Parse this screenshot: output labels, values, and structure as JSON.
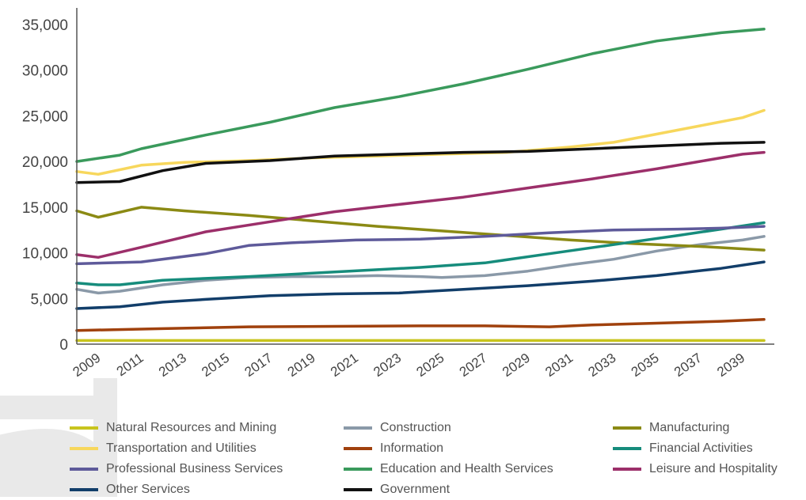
{
  "chart_data": {
    "type": "line",
    "x": [
      2008,
      2011,
      2014,
      2017,
      2020,
      2023,
      2026,
      2029,
      2032,
      2035,
      2038,
      2040
    ],
    "x_tick_labels": [
      "2009",
      "2011",
      "2013",
      "2015",
      "2017",
      "2019",
      "2021",
      "2023",
      "2025",
      "2027",
      "2029",
      "2031",
      "2033",
      "2035",
      "2037",
      "2039"
    ],
    "y_tick_labels": [
      "0",
      "5,000",
      "10,000",
      "15,000",
      "20,000",
      "25,000",
      "30,000",
      "35,000"
    ],
    "ylim": [
      0,
      36000
    ],
    "xlim": [
      2008,
      2040
    ],
    "grid": false,
    "legend_position": "bottom",
    "series": [
      {
        "name": "Natural Resources and Mining",
        "color": "#c8c41e",
        "x": [
          2008,
          2040
        ],
        "values": [
          400,
          400
        ]
      },
      {
        "name": "Construction",
        "color": "#8a99a8",
        "x": [
          2008,
          2009,
          2010,
          2012,
          2014,
          2016,
          2018,
          2020,
          2022,
          2024,
          2025,
          2027,
          2029,
          2031,
          2033,
          2035,
          2037,
          2039,
          2040
        ],
        "values": [
          6000,
          5600,
          5800,
          6500,
          7000,
          7300,
          7400,
          7400,
          7500,
          7400,
          7300,
          7500,
          8000,
          8700,
          9300,
          10200,
          10900,
          11400,
          11800
        ]
      },
      {
        "name": "Manufacturing",
        "color": "#8b8a14",
        "x": [
          2008,
          2009,
          2011,
          2013,
          2016,
          2019,
          2022,
          2025,
          2028,
          2031,
          2034,
          2037,
          2040
        ],
        "values": [
          14600,
          13900,
          15000,
          14600,
          14100,
          13500,
          12900,
          12400,
          11900,
          11400,
          11000,
          10700,
          10300
        ]
      },
      {
        "name": "Transportation and Utilities",
        "color": "#f7d75c",
        "x": [
          2008,
          2009,
          2011,
          2013,
          2016,
          2019,
          2022,
          2025,
          2028,
          2031,
          2033,
          2035,
          2037,
          2039,
          2040
        ],
        "values": [
          18900,
          18600,
          19600,
          19900,
          20100,
          20400,
          20600,
          20800,
          21000,
          21600,
          22100,
          23000,
          23900,
          24800,
          25600
        ]
      },
      {
        "name": "Information",
        "color": "#a0410d",
        "x": [
          2008,
          2012,
          2016,
          2020,
          2024,
          2027,
          2030,
          2032,
          2035,
          2038,
          2040
        ],
        "values": [
          1500,
          1700,
          1900,
          1950,
          2000,
          2000,
          1900,
          2100,
          2300,
          2500,
          2700
        ]
      },
      {
        "name": "Financial Activities",
        "color": "#168c7c",
        "x": [
          2008,
          2009,
          2010,
          2012,
          2016,
          2020,
          2024,
          2027,
          2030,
          2033,
          2036,
          2038,
          2040
        ],
        "values": [
          6700,
          6500,
          6500,
          7000,
          7400,
          7900,
          8400,
          8900,
          9900,
          10900,
          11900,
          12600,
          13300
        ]
      },
      {
        "name": "Professional Business Services",
        "color": "#5e5a9a",
        "x": [
          2008,
          2011,
          2014,
          2016,
          2018,
          2021,
          2024,
          2027,
          2030,
          2033,
          2036,
          2038,
          2040
        ],
        "values": [
          8800,
          9000,
          9900,
          10800,
          11100,
          11400,
          11500,
          11800,
          12200,
          12500,
          12600,
          12700,
          12900
        ]
      },
      {
        "name": "Education and Health Services",
        "color": "#3a9a5c",
        "x": [
          2008,
          2010,
          2011,
          2014,
          2017,
          2020,
          2023,
          2026,
          2029,
          2032,
          2035,
          2038,
          2040
        ],
        "values": [
          20000,
          20700,
          21400,
          22900,
          24300,
          25900,
          27100,
          28500,
          30100,
          31800,
          33200,
          34100,
          34500
        ]
      },
      {
        "name": "Leisure and Hospitality",
        "color": "#9c2f6a",
        "x": [
          2008,
          2009,
          2011,
          2014,
          2017,
          2020,
          2023,
          2026,
          2029,
          2032,
          2035,
          2037,
          2039,
          2040
        ],
        "values": [
          9800,
          9500,
          10600,
          12300,
          13400,
          14500,
          15300,
          16100,
          17100,
          18100,
          19200,
          20000,
          20800,
          21000
        ]
      },
      {
        "name": "Other Services",
        "color": "#123e6a",
        "x": [
          2008,
          2010,
          2012,
          2014,
          2017,
          2020,
          2023,
          2026,
          2029,
          2032,
          2035,
          2038,
          2040
        ],
        "values": [
          3900,
          4100,
          4600,
          4900,
          5300,
          5500,
          5600,
          6000,
          6400,
          6900,
          7500,
          8300,
          9000
        ]
      },
      {
        "name": "Government",
        "color": "#111111",
        "x": [
          2008,
          2010,
          2012,
          2014,
          2017,
          2020,
          2023,
          2026,
          2029,
          2032,
          2035,
          2038,
          2040
        ],
        "values": [
          17700,
          17800,
          19000,
          19800,
          20100,
          20600,
          20800,
          21000,
          21100,
          21400,
          21700,
          22000,
          22100
        ]
      }
    ]
  },
  "colors": {
    "axis": "#555555",
    "tick_text": "#444444",
    "logo": "#e8e8e8"
  }
}
